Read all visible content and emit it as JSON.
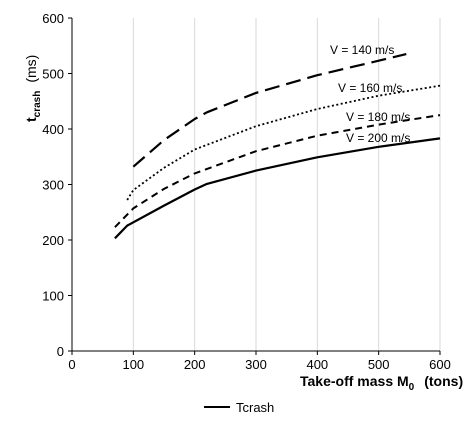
{
  "chart_data": {
    "type": "line",
    "y_title": {
      "main": "t",
      "sub": "crash",
      "unit": "(ms)"
    },
    "x_title": {
      "main": "Take-off mass M",
      "sub": "0",
      "unit": "(tons)"
    },
    "xlim": [
      0,
      600
    ],
    "ylim": [
      0,
      600
    ],
    "x_ticks": [
      0,
      100,
      200,
      300,
      400,
      500,
      600
    ],
    "y_ticks": [
      0,
      100,
      200,
      300,
      400,
      500,
      600
    ],
    "x_tick_labels": [
      "0",
      "100",
      "200",
      "300",
      "400",
      "500",
      "600"
    ],
    "y_tick_labels": [
      "0",
      "100",
      "200",
      "300",
      "400",
      "500",
      "600"
    ],
    "grid": "vertical",
    "legend": {
      "placement": "bottom",
      "entries": [
        "Tcrash"
      ]
    },
    "series": [
      {
        "name": "V = 140 m/s",
        "style": "long-dash",
        "x": [
          100,
          150,
          200,
          220,
          300,
          400,
          500,
          545
        ],
        "y": [
          332,
          380,
          418,
          430,
          465,
          497,
          523,
          535
        ]
      },
      {
        "name": "V = 160 m/s",
        "style": "dotted",
        "x": [
          90,
          100,
          150,
          200,
          300,
          400,
          500,
          600
        ],
        "y": [
          272,
          290,
          330,
          363,
          405,
          436,
          460,
          478
        ]
      },
      {
        "name": "V = 180 m/s",
        "style": "short-dash",
        "x": [
          70,
          100,
          150,
          200,
          300,
          400,
          500,
          600
        ],
        "y": [
          223,
          257,
          292,
          320,
          360,
          388,
          408,
          425
        ]
      },
      {
        "name": "V = 200 m/s",
        "style": "solid",
        "x": [
          70,
          90,
          150,
          200,
          220,
          300,
          400,
          500,
          600
        ],
        "y": [
          203,
          226,
          262,
          291,
          301,
          325,
          349,
          368,
          383
        ]
      }
    ]
  }
}
